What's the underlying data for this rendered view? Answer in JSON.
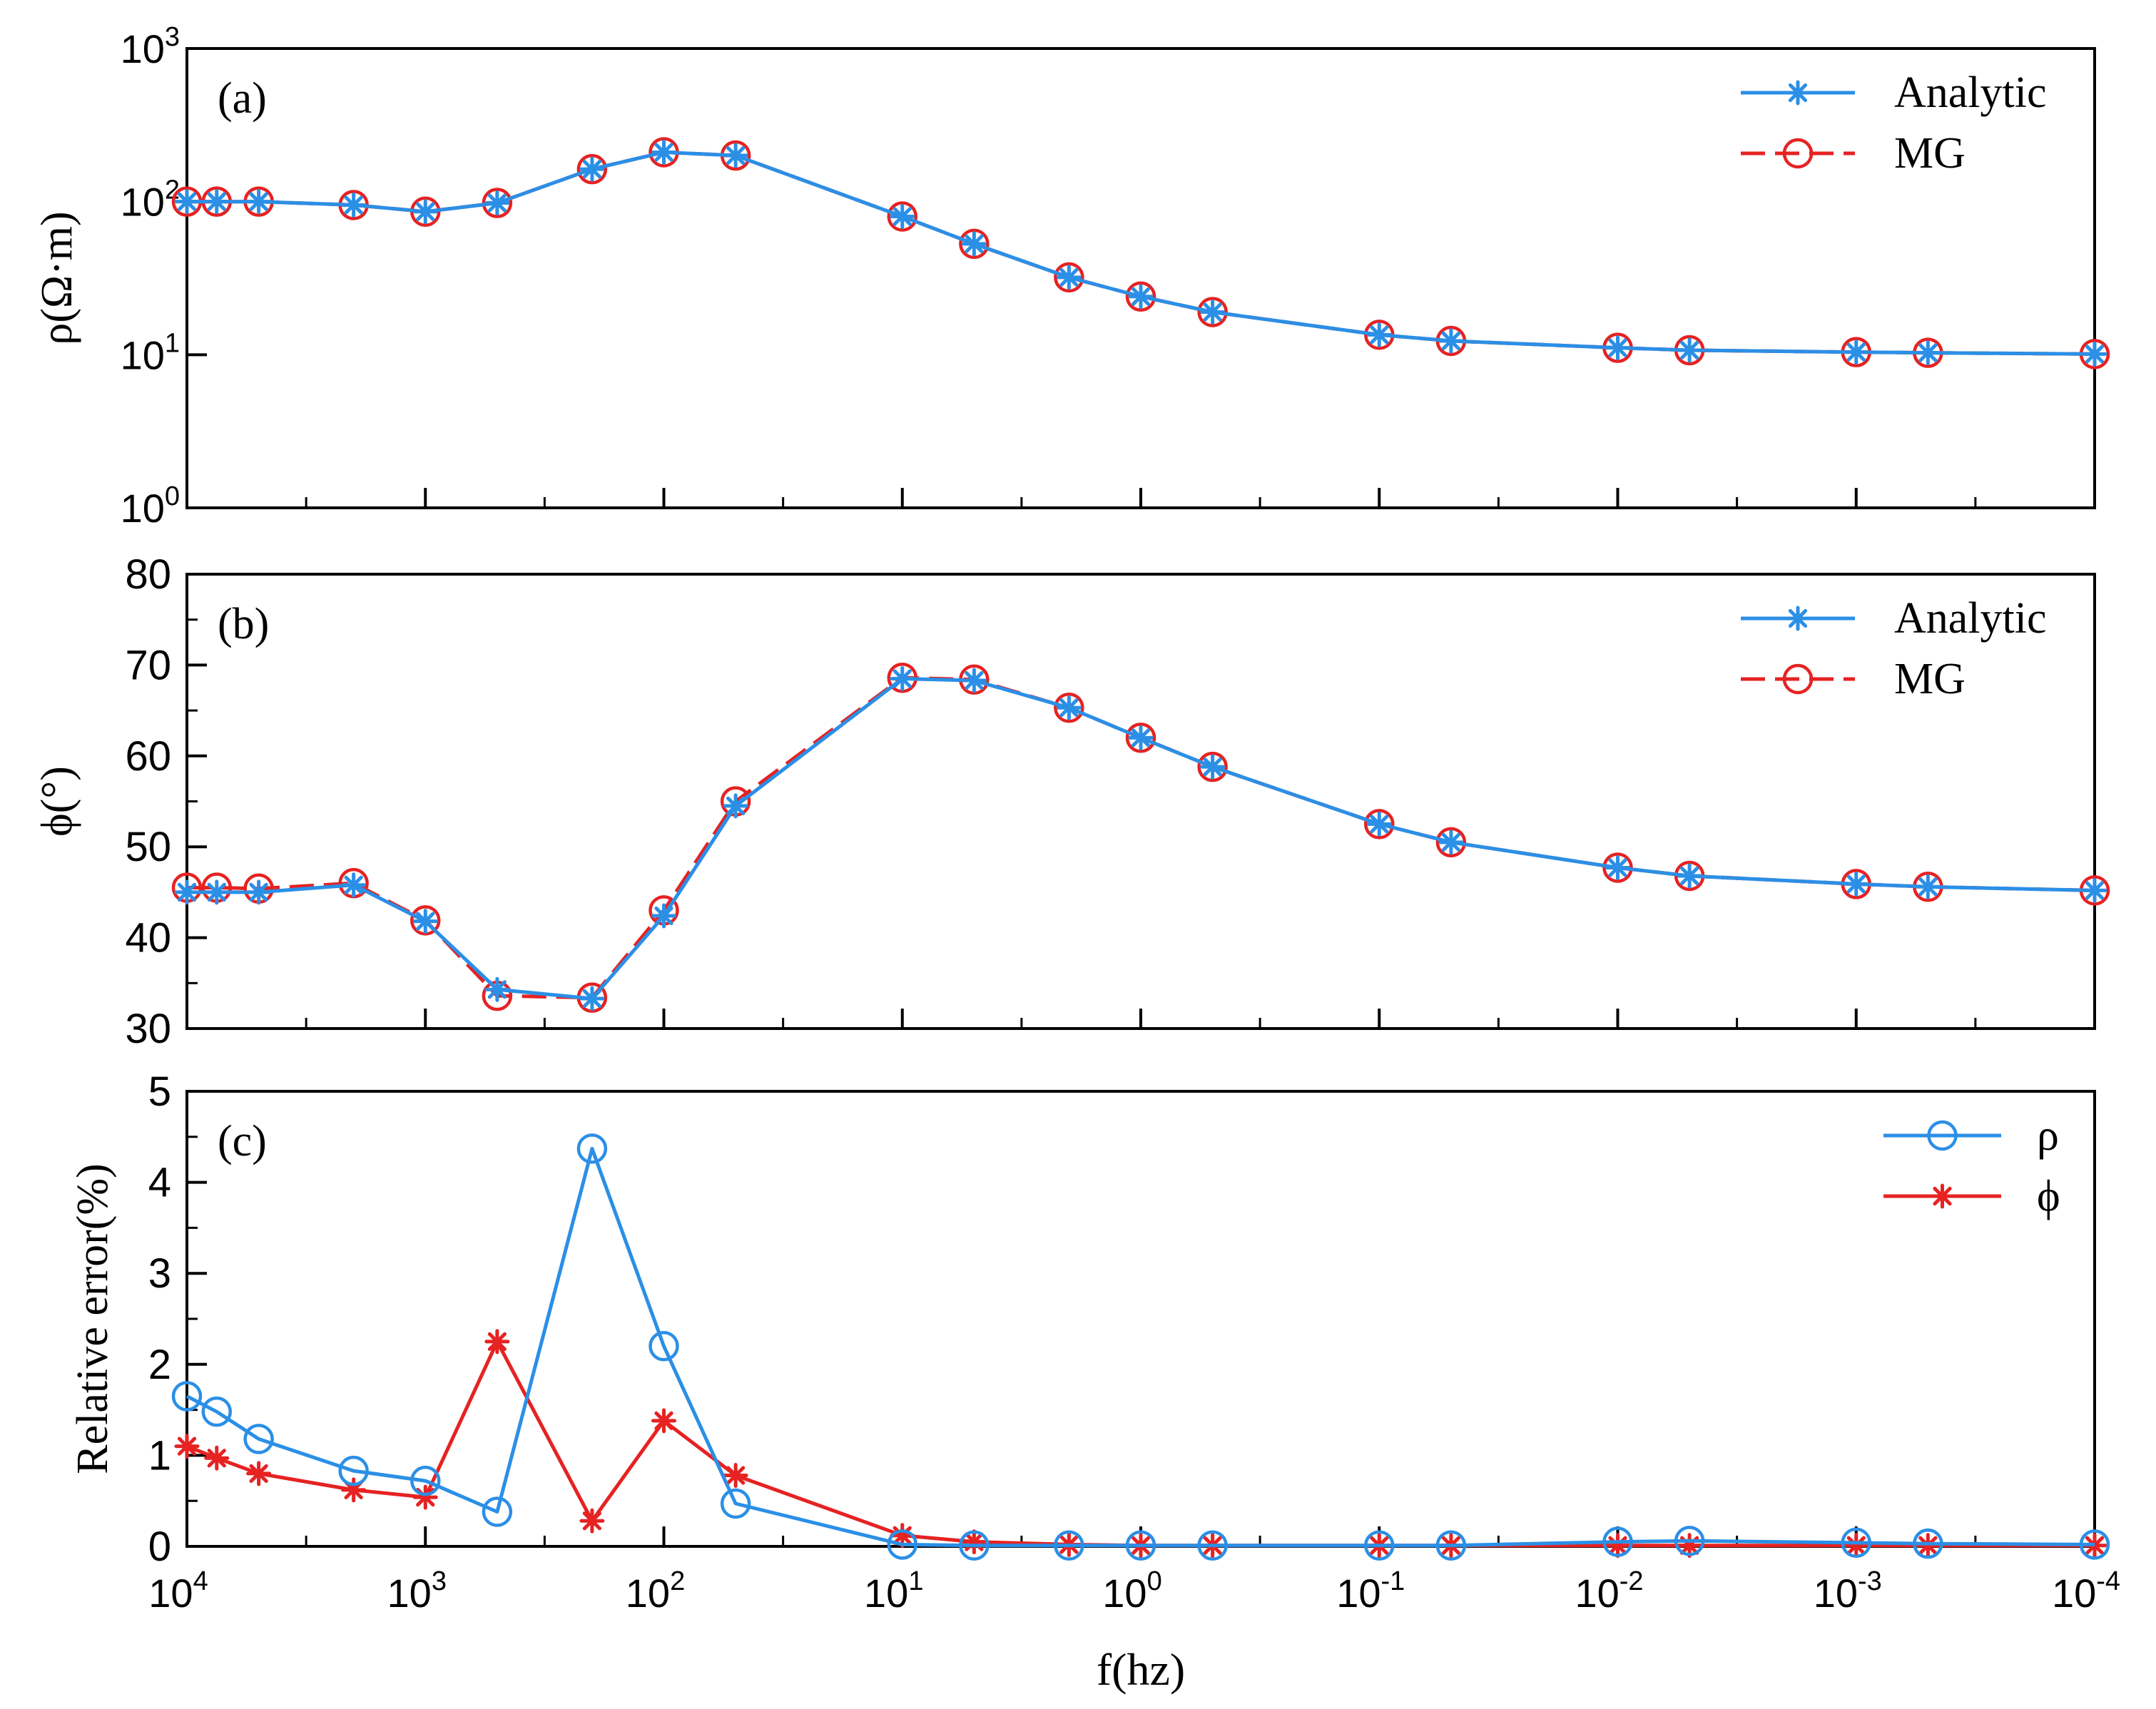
{
  "colors": {
    "analytic": "#2b8fe6",
    "mg": "#e62222",
    "axis": "#000000"
  },
  "x_tick_labels": [
    {
      "base": "10",
      "exp": "4"
    },
    {
      "base": "10",
      "exp": "3"
    },
    {
      "base": "10",
      "exp": "2"
    },
    {
      "base": "10",
      "exp": "1"
    },
    {
      "base": "10",
      "exp": "0"
    },
    {
      "base": "10",
      "exp": "-1"
    },
    {
      "base": "10",
      "exp": "-2"
    },
    {
      "base": "10",
      "exp": "-3"
    },
    {
      "base": "10",
      "exp": "-4"
    }
  ],
  "xlabel": "f(hz)",
  "chart_data": [
    {
      "type": "line",
      "panel_label": "(a)",
      "ylabel": "ρ(Ω·m)",
      "yscale": "log",
      "ylim": [
        1,
        1000
      ],
      "xscale": "log",
      "xlim": [
        10000,
        0.0001
      ],
      "y_tick_labels": [
        {
          "base": "10",
          "exp": "0",
          "value": 1
        },
        {
          "base": "10",
          "exp": "1",
          "value": 10
        },
        {
          "base": "10",
          "exp": "2",
          "value": 100
        },
        {
          "base": "10",
          "exp": "3",
          "value": 1000
        }
      ],
      "legend_position": "top-right",
      "x": [
        10000,
        7500,
        5000,
        2000,
        1000,
        500,
        200,
        100,
        50,
        10,
        5,
        2,
        1,
        0.5,
        0.1,
        0.05,
        0.01,
        0.005,
        0.001,
        0.0005,
        0.0001
      ],
      "series": [
        {
          "name": "Analytic",
          "marker": "asterisk",
          "values": [
            100,
            100,
            100,
            95,
            86,
            98,
            163,
            210,
            200,
            80,
            53,
            32,
            24,
            19,
            13.5,
            12.3,
            11.1,
            10.7,
            10.4,
            10.3,
            10.1
          ]
        },
        {
          "name": "MG",
          "marker": "circle",
          "values": [
            100,
            100,
            100,
            95,
            86,
            98,
            163,
            210,
            200,
            80,
            53,
            32,
            24,
            19,
            13.5,
            12.3,
            11.1,
            10.7,
            10.4,
            10.3,
            10.1
          ]
        }
      ]
    },
    {
      "type": "line",
      "panel_label": "(b)",
      "ylabel": "ϕ(°)",
      "yscale": "linear",
      "ylim": [
        30,
        80
      ],
      "xscale": "log",
      "xlim": [
        10000,
        0.0001
      ],
      "y_ticks": [
        30,
        40,
        50,
        60,
        70,
        80
      ],
      "legend_position": "top-right",
      "x": [
        10000,
        7500,
        5000,
        2000,
        1000,
        500,
        200,
        100,
        50,
        10,
        5,
        2,
        1,
        0.5,
        0.1,
        0.05,
        0.01,
        0.005,
        0.001,
        0.0005,
        0.0001
      ],
      "series": [
        {
          "name": "Analytic",
          "marker": "asterisk",
          "values": [
            45.0,
            45.0,
            45.0,
            45.8,
            41.8,
            34.3,
            33.3,
            42.4,
            54.5,
            68.5,
            68.3,
            65.3,
            62.0,
            58.8,
            52.5,
            50.5,
            47.7,
            46.8,
            45.9,
            45.6,
            45.2
          ]
        },
        {
          "name": "MG",
          "marker": "circle",
          "values": [
            45.5,
            45.5,
            45.4,
            46.0,
            41.9,
            33.6,
            33.4,
            43.0,
            55.0,
            68.6,
            68.4,
            65.3,
            62.0,
            58.8,
            52.5,
            50.5,
            47.7,
            46.8,
            45.9,
            45.6,
            45.2
          ]
        }
      ]
    },
    {
      "type": "line",
      "panel_label": "(c)",
      "ylabel": "Relative error(%)",
      "yscale": "linear",
      "ylim": [
        0,
        5
      ],
      "xscale": "log",
      "xlim": [
        10000,
        0.0001
      ],
      "y_ticks": [
        0,
        1,
        2,
        3,
        4,
        5
      ],
      "legend_position": "top-right",
      "x": [
        10000,
        7500,
        5000,
        2000,
        1000,
        500,
        200,
        100,
        50,
        10,
        5,
        2,
        1,
        0.5,
        0.1,
        0.05,
        0.01,
        0.005,
        0.001,
        0.0005,
        0.0001
      ],
      "series": [
        {
          "name": "ρ",
          "marker": "circle",
          "values": [
            1.65,
            1.48,
            1.18,
            0.83,
            0.72,
            0.38,
            4.37,
            2.2,
            0.47,
            0.02,
            0.01,
            0.01,
            0.01,
            0.01,
            0.01,
            0.01,
            0.05,
            0.06,
            0.04,
            0.03,
            0.02
          ]
        },
        {
          "name": "ϕ",
          "marker": "asterisk",
          "values": [
            1.1,
            0.97,
            0.8,
            0.62,
            0.54,
            2.25,
            0.28,
            1.38,
            0.78,
            0.12,
            0.05,
            0.02,
            0.01,
            0.01,
            0.01,
            0.01,
            0.01,
            0.01,
            0.01,
            0.01,
            0.01
          ]
        }
      ]
    }
  ]
}
